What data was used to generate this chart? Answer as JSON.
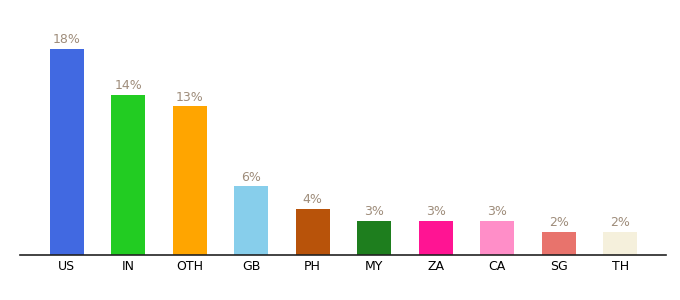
{
  "categories": [
    "US",
    "IN",
    "OTH",
    "GB",
    "PH",
    "MY",
    "ZA",
    "CA",
    "SG",
    "TH"
  ],
  "values": [
    18,
    14,
    13,
    6,
    4,
    3,
    3,
    3,
    2,
    2
  ],
  "bar_colors": [
    "#4169e1",
    "#22cc22",
    "#ffa500",
    "#87ceeb",
    "#b8530a",
    "#1e7e1e",
    "#ff1493",
    "#ff8ec8",
    "#e8736c",
    "#f5f0dc"
  ],
  "ylim": [
    0,
    21
  ],
  "label_color": "#9e8c7a",
  "background_color": "#ffffff",
  "bar_width": 0.55,
  "label_fontsize": 9,
  "tick_fontsize": 9
}
